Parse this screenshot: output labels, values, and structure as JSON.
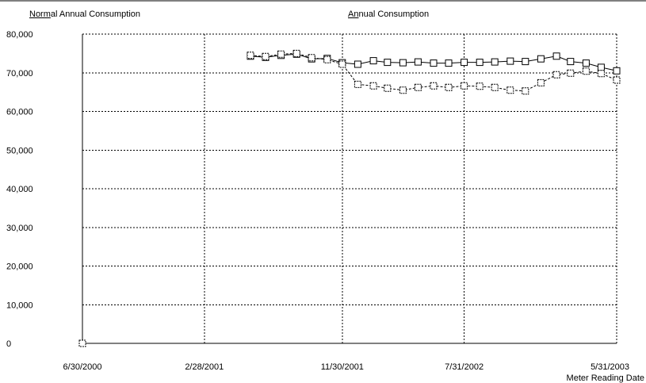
{
  "legend": {
    "normal": {
      "accel": "Norm",
      "rest": "al Annual Consumption"
    },
    "annual": {
      "accel": "An",
      "rest": "nual Consumption"
    }
  },
  "chart_data": {
    "type": "line",
    "title": "",
    "xlabel": "Meter Reading Date",
    "ylabel": "",
    "ylim": [
      0,
      80000
    ],
    "yticks": [
      0,
      10000,
      20000,
      30000,
      40000,
      50000,
      60000,
      70000,
      80000
    ],
    "ytick_labels": [
      "0",
      "10,000",
      "20,000",
      "30,000",
      "40,000",
      "50,000",
      "60,000",
      "70,000",
      "80,000"
    ],
    "xlim": [
      "2000-06-30",
      "2003-05-31"
    ],
    "xticks": [
      "2000-06-30",
      "2001-02-28",
      "2001-11-30",
      "2002-07-31",
      "2003-05-31"
    ],
    "xtick_labels": [
      "6/30/2000",
      "2/28/2001",
      "11/30/2001",
      "7/31/2002",
      "5/31/2003"
    ],
    "grid": true,
    "marker": "square",
    "series": [
      {
        "name": "Normal Annual Consumption",
        "style": "solid",
        "color": "#000000",
        "x": [
          "2001-05-31",
          "2001-06-30",
          "2001-07-31",
          "2001-08-31",
          "2001-09-30",
          "2001-10-31",
          "2001-11-30",
          "2001-12-31",
          "2002-01-31",
          "2002-02-28",
          "2002-03-31",
          "2002-04-30",
          "2002-05-31",
          "2002-06-30",
          "2002-07-31",
          "2002-08-31",
          "2002-09-30",
          "2002-10-31",
          "2002-11-30",
          "2002-12-31",
          "2003-01-31",
          "2003-02-28",
          "2003-03-31",
          "2003-04-30",
          "2003-05-31"
        ],
        "y": [
          74300,
          74000,
          74500,
          74800,
          73600,
          73700,
          72600,
          72200,
          73100,
          72700,
          72600,
          72800,
          72500,
          72500,
          72700,
          72700,
          72800,
          73000,
          72900,
          73600,
          74300,
          72900,
          72500,
          71400,
          70500
        ]
      },
      {
        "name": "Annual Consumption",
        "style": "dashed",
        "color": "#000000",
        "x": [
          "2000-06-30",
          "2001-05-31",
          "2001-06-30",
          "2001-07-31",
          "2001-08-31",
          "2001-09-30",
          "2001-10-31",
          "2001-11-30",
          "2001-12-31",
          "2002-01-31",
          "2002-02-28",
          "2002-03-31",
          "2002-04-30",
          "2002-05-31",
          "2002-06-30",
          "2002-07-31",
          "2002-08-31",
          "2002-09-30",
          "2002-10-31",
          "2002-11-30",
          "2002-12-31",
          "2003-01-31",
          "2003-02-28",
          "2003-03-31",
          "2003-04-30",
          "2003-05-31"
        ],
        "y": [
          0,
          74500,
          74200,
          74800,
          75000,
          73900,
          73400,
          72200,
          67000,
          66600,
          66000,
          65500,
          66200,
          66600,
          66200,
          66600,
          66500,
          66200,
          65500,
          65300,
          67400,
          69500,
          69900,
          70400,
          69800,
          68100
        ]
      }
    ]
  }
}
